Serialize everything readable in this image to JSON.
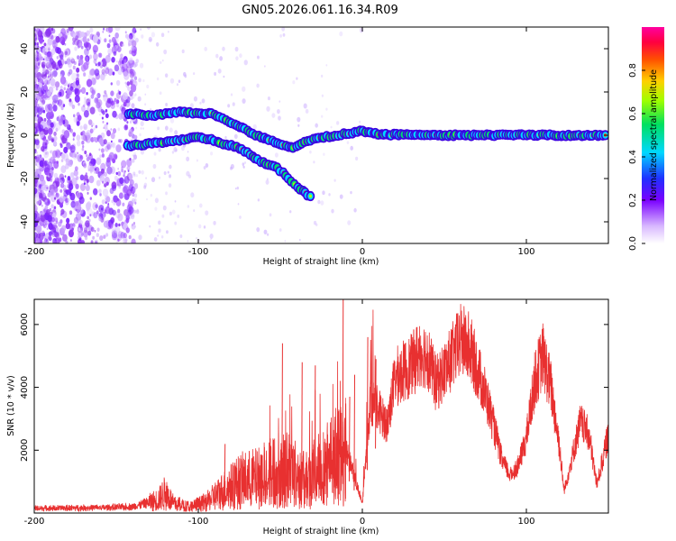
{
  "title": "GN05.2026.061.16.34.R09",
  "chart_data": [
    {
      "type": "heatmap",
      "xlabel": "Height of straight line (km)",
      "ylabel": "Frequency (Hz)",
      "xlim": [
        -200,
        150
      ],
      "ylim": [
        -50,
        50
      ],
      "x_ticks": [
        -200,
        -100,
        0,
        100
      ],
      "y_ticks": [
        -40,
        -20,
        0,
        20,
        40
      ],
      "x_tick_labels": [
        "-200",
        "-100",
        "0",
        "100"
      ],
      "y_tick_labels": [
        "-40",
        "-20",
        "0",
        "20",
        "40"
      ],
      "colorbar": {
        "label": "Normalized spectral amplitude",
        "range": [
          0,
          1
        ],
        "ticks": [
          0,
          0.2,
          0.4,
          0.6,
          0.8
        ],
        "tick_labels": [
          "0.0",
          "0.2",
          "0.4",
          "0.6",
          "0.8"
        ]
      },
      "traces": [
        {
          "points": [
            [
              -143,
              10
            ],
            [
              -130,
              9
            ],
            [
              -120,
              10
            ],
            [
              -110,
              11
            ],
            [
              -100,
              10
            ],
            [
              -92,
              10
            ],
            [
              -85,
              8
            ],
            [
              -78,
              5
            ],
            [
              -72,
              3
            ],
            [
              -65,
              0
            ],
            [
              -58,
              -2
            ]
          ]
        },
        {
          "points": [
            [
              -143,
              -5
            ],
            [
              -130,
              -4
            ],
            [
              -120,
              -3
            ],
            [
              -110,
              -2
            ],
            [
              -100,
              -1
            ],
            [
              -92,
              -2
            ],
            [
              -85,
              -4
            ],
            [
              -78,
              -5
            ],
            [
              -70,
              -8
            ],
            [
              -62,
              -12
            ],
            [
              -52,
              -15
            ],
            [
              -45,
              -20
            ],
            [
              -38,
              -25
            ],
            [
              -30,
              -29
            ]
          ]
        },
        {
          "points": [
            [
              -60,
              -1
            ],
            [
              -50,
              -4
            ],
            [
              -42,
              -6
            ],
            [
              -35,
              -3
            ],
            [
              -25,
              -1
            ],
            [
              -15,
              0
            ],
            [
              -8,
              1
            ],
            [
              0,
              2
            ],
            [
              10,
              0.5
            ],
            [
              30,
              0
            ],
            [
              60,
              0
            ],
            [
              100,
              0
            ],
            [
              150,
              0
            ]
          ]
        }
      ]
    },
    {
      "type": "line",
      "xlabel": "Height of straight line (km)",
      "ylabel": "SNR (10 * v/v)",
      "xlim": [
        -200,
        150
      ],
      "ylim": [
        0,
        6800
      ],
      "x_ticks": [
        -200,
        -100,
        0,
        100
      ],
      "y_ticks": [
        2000,
        4000,
        6000
      ],
      "x_tick_labels": [
        "-200",
        "-100",
        "0",
        "100"
      ],
      "y_tick_labels": [
        "2000",
        "4000",
        "6000"
      ],
      "color": "#e83030",
      "envelope": [
        [
          -200,
          150
        ],
        [
          -180,
          160
        ],
        [
          -160,
          170
        ],
        [
          -140,
          200
        ],
        [
          -125,
          400
        ],
        [
          -120,
          650
        ],
        [
          -115,
          300
        ],
        [
          -105,
          200
        ],
        [
          -95,
          350
        ],
        [
          -85,
          700
        ],
        [
          -75,
          1000
        ],
        [
          -65,
          1100
        ],
        [
          -55,
          1300
        ],
        [
          -45,
          1400
        ],
        [
          -35,
          1000
        ],
        [
          -25,
          1500
        ],
        [
          -15,
          1800
        ],
        [
          -10,
          2000
        ],
        [
          -5,
          1200
        ],
        [
          0,
          300
        ],
        [
          5,
          3600
        ],
        [
          10,
          3300
        ],
        [
          15,
          2800
        ],
        [
          20,
          4300
        ],
        [
          30,
          4700
        ],
        [
          35,
          5100
        ],
        [
          40,
          5000
        ],
        [
          45,
          4100
        ],
        [
          50,
          4500
        ],
        [
          60,
          5500
        ],
        [
          65,
          5300
        ],
        [
          70,
          4600
        ],
        [
          75,
          3800
        ],
        [
          80,
          2800
        ],
        [
          85,
          1700
        ],
        [
          90,
          1200
        ],
        [
          95,
          1500
        ],
        [
          100,
          2400
        ],
        [
          105,
          4200
        ],
        [
          110,
          5000
        ],
        [
          115,
          4000
        ],
        [
          120,
          2200
        ],
        [
          123,
          700
        ],
        [
          128,
          1800
        ],
        [
          133,
          2900
        ],
        [
          138,
          2500
        ],
        [
          143,
          900
        ],
        [
          150,
          2500
        ]
      ],
      "spikes": [
        [
          -121,
          900
        ],
        [
          -84,
          2200
        ],
        [
          -78,
          1600
        ],
        [
          -60,
          1900
        ],
        [
          -49,
          5400
        ],
        [
          -37,
          4800
        ],
        [
          -29,
          4700
        ],
        [
          -17,
          1900
        ],
        [
          -12,
          6800
        ],
        [
          -8,
          3700
        ],
        [
          -5,
          4400
        ],
        [
          3,
          5600
        ],
        [
          8,
          4900
        ]
      ]
    }
  ]
}
